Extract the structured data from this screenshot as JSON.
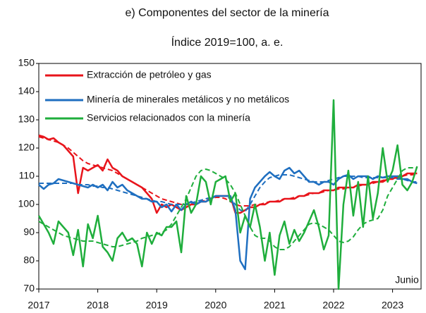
{
  "chart_data": {
    "type": "line",
    "title": "e) Componentes del sector de la minería",
    "subtitle": "Índice 2019=100, a. e.",
    "annotation": "Junio",
    "categories": [
      "2017",
      null,
      null,
      null,
      null,
      null,
      null,
      null,
      null,
      null,
      null,
      null,
      "2018",
      null,
      null,
      null,
      null,
      null,
      null,
      null,
      null,
      null,
      null,
      null,
      "2019",
      null,
      null,
      null,
      null,
      null,
      null,
      null,
      null,
      null,
      null,
      null,
      "2020",
      null,
      null,
      null,
      null,
      null,
      null,
      null,
      null,
      null,
      null,
      null,
      "2021",
      null,
      null,
      null,
      null,
      null,
      null,
      null,
      null,
      null,
      null,
      null,
      "2022",
      null,
      null,
      null,
      null,
      null,
      null,
      null,
      null,
      null,
      null,
      null,
      "2023",
      null,
      null,
      null,
      null,
      null
    ],
    "ylim": [
      70,
      150
    ],
    "yticks": [
      70,
      80,
      90,
      100,
      110,
      120,
      130,
      140,
      150
    ],
    "series": [
      {
        "name": "Extracción de petróleo y gas",
        "color": "#e8141b",
        "dashed": false,
        "values": [
          124.5,
          124,
          123,
          123.5,
          122,
          121,
          119,
          117,
          104,
          113,
          112,
          113,
          114,
          112,
          116,
          113,
          112,
          110,
          109,
          108,
          107,
          106,
          104,
          102,
          97,
          100,
          99,
          100,
          99,
          98,
          99,
          100,
          100,
          101,
          101,
          102,
          103,
          103,
          103,
          103,
          97,
          97,
          98,
          99,
          99,
          100,
          100,
          101,
          101,
          101,
          102,
          102,
          102,
          103,
          103,
          104,
          104,
          104,
          105,
          105,
          105,
          106,
          106,
          106,
          106,
          107,
          107,
          107,
          108,
          108,
          108,
          109,
          109,
          110,
          110,
          111,
          111,
          111
        ]
      },
      {
        "color": "#e8141b",
        "dashed": true,
        "values": [
          124,
          123.5,
          123,
          122.5,
          122,
          121,
          120,
          118.5,
          117,
          115.5,
          114.5,
          114,
          113.5,
          113,
          112.5,
          112,
          111,
          110,
          109,
          108,
          107,
          106,
          105,
          104,
          103,
          102,
          101.5,
          101,
          100.5,
          100,
          100,
          100,
          100.5,
          101,
          101.5,
          102,
          102.5,
          102.5,
          102,
          101,
          100,
          99.5,
          99.5,
          99.5,
          100,
          100,
          100.5,
          101,
          101,
          101.5,
          102,
          102,
          102.5,
          103,
          103,
          103.5,
          104,
          104,
          104.5,
          105,
          105,
          105.5,
          105.5,
          106,
          106,
          106.5,
          107,
          107,
          107.5,
          108,
          108.5,
          109,
          109,
          109.5,
          110,
          110.5,
          110.5,
          111
        ]
      },
      {
        "name": "Minería de minerales metálicos y no metálicos",
        "color": "#1f6fc0",
        "dashed": false,
        "values": [
          107,
          105.5,
          107,
          107.5,
          109,
          108.5,
          108,
          107.5,
          107,
          106.5,
          106,
          107,
          106,
          107,
          105,
          108,
          106,
          107,
          105,
          104,
          103,
          102,
          102,
          101,
          101,
          99,
          100,
          97.5,
          100,
          98,
          100,
          101,
          100,
          101,
          101,
          102,
          103,
          103,
          103,
          103,
          98,
          80,
          77,
          102,
          106,
          108,
          110,
          111.5,
          110,
          109,
          112,
          113,
          111,
          112,
          110,
          108,
          108,
          107,
          108,
          108,
          107,
          109,
          110,
          110.5,
          109,
          110,
          110,
          110,
          109,
          110,
          109.5,
          110,
          110,
          110,
          109,
          109,
          108,
          107.5
        ]
      },
      {
        "color": "#1f6fc0",
        "dashed": true,
        "values": [
          107.5,
          107.5,
          107.5,
          107.5,
          107.5,
          107.5,
          107.5,
          107.5,
          107,
          107,
          107,
          106.5,
          106.5,
          106,
          106,
          105.5,
          105,
          104.5,
          104,
          103.5,
          103,
          102.5,
          102,
          101.5,
          101,
          101,
          100.5,
          100,
          100,
          100,
          100,
          100.5,
          101,
          101.5,
          102,
          102.5,
          103,
          103,
          103,
          102,
          100,
          98,
          97.5,
          100,
          103,
          106,
          108,
          109.5,
          110,
          110.5,
          110.5,
          110.5,
          110,
          109.5,
          109,
          108.5,
          108,
          108,
          108,
          108.5,
          109,
          109.5,
          110,
          110,
          110,
          110,
          109.5,
          109.5,
          109.5,
          109.5,
          109.5,
          109.5,
          109.5,
          109,
          109,
          108.5,
          108,
          108
        ]
      },
      {
        "name": "Servicios relacionados con la minería",
        "color": "#1fae3c",
        "dashed": false,
        "values": [
          96,
          93,
          90,
          86,
          94,
          92,
          90,
          82,
          91,
          78,
          93,
          88,
          96,
          85,
          83,
          80,
          88,
          90,
          87,
          88,
          86,
          78,
          90,
          86,
          90,
          89,
          92,
          92,
          94,
          83,
          103,
          97,
          100,
          110,
          108,
          100,
          108,
          109,
          110,
          101,
          104,
          90,
          96,
          92,
          100,
          92,
          80,
          90,
          75,
          89,
          94,
          86,
          91,
          87,
          90,
          94,
          98,
          92,
          84,
          89,
          137,
          70,
          100,
          112,
          96,
          108,
          92,
          110,
          95,
          104,
          120,
          108,
          112,
          121,
          107,
          105,
          108,
          113.5
        ]
      },
      {
        "color": "#1fae3c",
        "dashed": true,
        "values": [
          94,
          93,
          92,
          91,
          90,
          89,
          88.5,
          88,
          87.5,
          87,
          87,
          87,
          86.5,
          86,
          85.5,
          85,
          85,
          85.5,
          86,
          86.5,
          87,
          88,
          88.5,
          89,
          89.5,
          90,
          91,
          93,
          96,
          99,
          102,
          106,
          110,
          112,
          112.5,
          112,
          111,
          110,
          109,
          107,
          104,
          100,
          96,
          92,
          89,
          88,
          88,
          87,
          85,
          84,
          84,
          85,
          87,
          89,
          91,
          93,
          93.5,
          93,
          92,
          91,
          89,
          87,
          86.5,
          87,
          88.5,
          91,
          93,
          94,
          94.5,
          95,
          98,
          103,
          106,
          109,
          112,
          113,
          113,
          113
        ]
      }
    ]
  }
}
